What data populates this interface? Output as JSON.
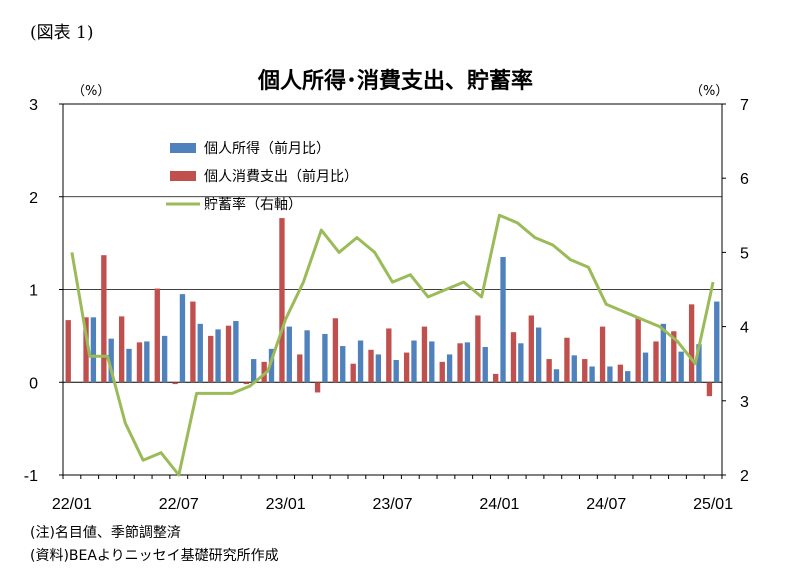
{
  "figure_label": "(図表 1)",
  "chart_data": {
    "type": "bar",
    "title": "個人所得･消費支出、貯蓄率",
    "left_unit": "（%）",
    "right_unit": "（%）",
    "ylim_left": [
      -1,
      3
    ],
    "ylim_right": [
      2,
      7
    ],
    "yticks_left": [
      "3",
      "2",
      "1",
      "0",
      "-1"
    ],
    "yticks_right": [
      "7",
      "6",
      "5",
      "4",
      "3",
      "2"
    ],
    "xticks": [
      {
        "label": "22/01",
        "index": 0
      },
      {
        "label": "22/07",
        "index": 6
      },
      {
        "label": "23/01",
        "index": 12
      },
      {
        "label": "23/07",
        "index": 18
      },
      {
        "label": "24/01",
        "index": 24
      },
      {
        "label": "24/07",
        "index": 30
      },
      {
        "label": "25/01",
        "index": 36
      }
    ],
    "categories": [
      "22/01",
      "22/02",
      "22/03",
      "22/04",
      "22/05",
      "22/06",
      "22/07",
      "22/08",
      "22/09",
      "22/10",
      "22/11",
      "22/12",
      "23/01",
      "23/02",
      "23/03",
      "23/04",
      "23/05",
      "23/06",
      "23/07",
      "23/08",
      "23/09",
      "23/10",
      "23/11",
      "23/12",
      "24/01",
      "24/02",
      "24/03",
      "24/04",
      "24/05",
      "24/06",
      "24/07",
      "24/08",
      "24/09",
      "24/10",
      "24/11",
      "24/12",
      "25/01"
    ],
    "series": [
      {
        "name": "個人所得（前月比）",
        "kind": "bar",
        "axis": "left",
        "color": "#4F81BD",
        "values": [
          0.0,
          0.7,
          0.47,
          0.36,
          0.44,
          0.5,
          0.95,
          0.63,
          0.57,
          0.66,
          0.25,
          0.36,
          0.6,
          0.56,
          0.52,
          0.39,
          0.45,
          0.3,
          0.24,
          0.45,
          0.44,
          0.3,
          0.43,
          0.38,
          1.35,
          0.42,
          0.59,
          0.14,
          0.29,
          0.17,
          0.17,
          0.12,
          0.32,
          0.63,
          0.33,
          0.41,
          0.87
        ]
      },
      {
        "name": "個人消費支出（前月比）",
        "kind": "bar",
        "axis": "left",
        "color": "#C0504D",
        "values": [
          0.67,
          0.7,
          1.37,
          0.71,
          0.43,
          1.01,
          -0.02,
          0.87,
          0.5,
          0.61,
          -0.02,
          0.22,
          1.77,
          0.3,
          -0.11,
          0.69,
          0.2,
          0.35,
          0.58,
          0.32,
          0.6,
          0.22,
          0.42,
          0.72,
          0.09,
          0.54,
          0.72,
          0.25,
          0.48,
          0.25,
          0.6,
          0.19,
          0.7,
          0.44,
          0.55,
          0.84,
          -0.15
        ]
      },
      {
        "name": "貯蓄率（右軸）",
        "kind": "line",
        "axis": "right",
        "color": "#9BBB59",
        "values": [
          5.0,
          3.6,
          3.6,
          2.7,
          2.2,
          2.3,
          2.0,
          3.1,
          3.1,
          3.1,
          3.2,
          3.4,
          4.1,
          4.6,
          5.3,
          5.0,
          5.2,
          5.0,
          4.6,
          4.7,
          4.4,
          4.5,
          4.6,
          4.4,
          5.5,
          5.4,
          5.2,
          5.1,
          4.9,
          4.8,
          4.3,
          4.2,
          4.1,
          4.0,
          3.8,
          3.5,
          4.6
        ]
      }
    ]
  },
  "notes": {
    "line1": "(注)名目値、季節調整済",
    "line2": "(資料)BEAよりニッセイ基礎研究所作成"
  }
}
